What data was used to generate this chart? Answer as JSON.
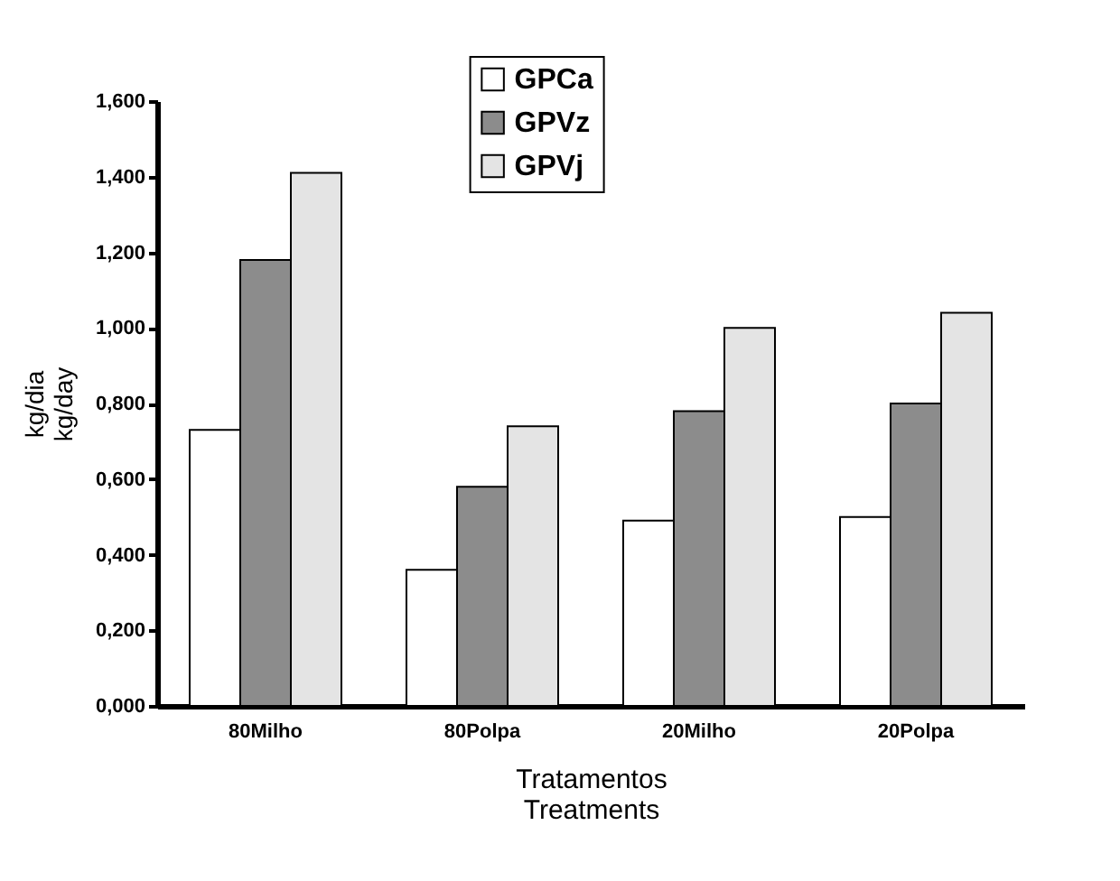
{
  "chart_data": {
    "type": "bar",
    "ylabel": "kg/dia",
    "xlabel": "Tratamentos",
    "annotations": [
      "kg/day",
      "Treatments"
    ],
    "categories": [
      "80Milho",
      "80Polpa",
      "20Milho",
      "20Polpa"
    ],
    "series": [
      {
        "name": "GPCa",
        "color": "#ffffff",
        "values": [
          0.73,
          0.36,
          0.49,
          0.5
        ]
      },
      {
        "name": "GPVz",
        "color": "#8c8c8c",
        "values": [
          1.18,
          0.58,
          0.78,
          0.8
        ]
      },
      {
        "name": "GPVj",
        "color": "#e4e4e4",
        "values": [
          1.41,
          0.74,
          1.0,
          1.04
        ]
      }
    ],
    "ylim": [
      0,
      1.6
    ],
    "yticks": [
      {
        "value": 0,
        "label": "0,000"
      },
      {
        "value": 0.2,
        "label": "0,200"
      },
      {
        "value": 0.4,
        "label": "0,400"
      },
      {
        "value": 0.6,
        "label": "0,600"
      },
      {
        "value": 0.8,
        "label": "0,800"
      },
      {
        "value": 1.0,
        "label": "1,000"
      },
      {
        "value": 1.2,
        "label": "1,200"
      },
      {
        "value": 1.4,
        "label": "1,400"
      },
      {
        "value": 1.6,
        "label": "1,600"
      }
    ],
    "grid": false,
    "legend": "top"
  }
}
